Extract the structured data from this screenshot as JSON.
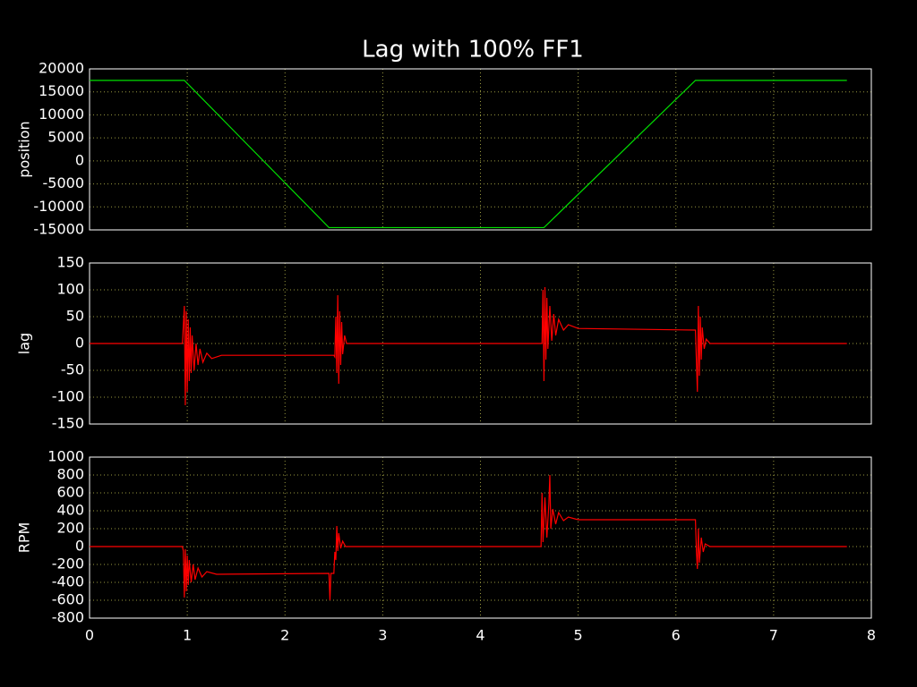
{
  "chart_data": [
    {
      "type": "line",
      "title": "Lag with 100% FF1",
      "ylabel": "position",
      "x": [
        0,
        0.97,
        2.45,
        4.65,
        6.2,
        7.75
      ],
      "series": [
        {
          "color": "#00e000",
          "values": [
            17500,
            17500,
            -14500,
            -14500,
            17500,
            17500
          ]
        }
      ],
      "xlim": [
        0,
        8
      ],
      "xticks": [
        0,
        1,
        2,
        3,
        4,
        5,
        6,
        7,
        8
      ],
      "ylim": [
        -15000,
        20000
      ],
      "yticks": [
        -15000,
        -10000,
        -5000,
        0,
        5000,
        10000,
        15000,
        20000
      ],
      "grid": true
    },
    {
      "type": "line",
      "ylabel": "lag",
      "x": [
        0,
        0.95,
        0.97,
        0.98,
        0.99,
        1.0,
        1.01,
        1.02,
        1.03,
        1.04,
        1.05,
        1.07,
        1.09,
        1.11,
        1.13,
        1.16,
        1.2,
        1.25,
        1.35,
        2.5,
        2.51,
        2.52,
        2.53,
        2.54,
        2.55,
        2.56,
        2.57,
        2.58,
        2.59,
        2.61,
        2.63,
        4.63,
        4.64,
        4.65,
        4.66,
        4.67,
        4.68,
        4.69,
        4.71,
        4.73,
        4.75,
        4.77,
        4.8,
        4.85,
        4.9,
        5.0,
        6.2,
        6.22,
        6.23,
        6.24,
        6.25,
        6.26,
        6.27,
        6.29,
        6.31,
        6.35,
        7.75
      ],
      "series": [
        {
          "color": "#ff0000",
          "values": [
            0,
            0,
            70,
            -115,
            60,
            -90,
            45,
            -70,
            30,
            -55,
            15,
            -50,
            0,
            -40,
            -10,
            -35,
            -18,
            -28,
            -22,
            -22,
            -25,
            50,
            -55,
            90,
            -75,
            60,
            -40,
            40,
            -20,
            15,
            0,
            0,
            100,
            -70,
            105,
            -30,
            85,
            -10,
            70,
            5,
            55,
            15,
            45,
            25,
            35,
            28,
            25,
            -90,
            70,
            -60,
            50,
            -30,
            30,
            -10,
            8,
            0,
            0
          ]
        }
      ],
      "xlim": [
        0,
        8
      ],
      "xticks": [
        0,
        1,
        2,
        3,
        4,
        5,
        6,
        7,
        8
      ],
      "ylim": [
        -150,
        150
      ],
      "yticks": [
        -150,
        -100,
        -50,
        0,
        50,
        100,
        150
      ],
      "grid": true
    },
    {
      "type": "line",
      "ylabel": "RPM",
      "x": [
        0,
        0.95,
        0.96,
        0.97,
        0.98,
        0.99,
        1.0,
        1.01,
        1.02,
        1.04,
        1.06,
        1.08,
        1.11,
        1.15,
        1.2,
        1.3,
        2.45,
        2.46,
        2.47,
        2.5,
        2.51,
        2.52,
        2.53,
        2.54,
        2.55,
        2.57,
        2.59,
        2.62,
        4.62,
        4.63,
        4.64,
        4.66,
        4.68,
        4.7,
        4.71,
        4.72,
        4.74,
        4.77,
        4.8,
        4.85,
        4.9,
        5.0,
        6.2,
        6.21,
        6.22,
        6.23,
        6.24,
        6.26,
        6.28,
        6.3,
        6.35,
        7.75
      ],
      "series": [
        {
          "color": "#ff0000",
          "values": [
            0,
            0,
            -50,
            -570,
            -30,
            -500,
            -100,
            -430,
            -150,
            -400,
            -200,
            -370,
            -240,
            -340,
            -280,
            -310,
            -300,
            -600,
            -300,
            -300,
            -60,
            -150,
            230,
            -50,
            150,
            -20,
            60,
            0,
            0,
            600,
            50,
            550,
            100,
            480,
            800,
            200,
            420,
            250,
            380,
            290,
            330,
            300,
            300,
            -50,
            -250,
            200,
            -180,
            100,
            -60,
            30,
            0,
            0
          ]
        }
      ],
      "xlim": [
        0,
        8
      ],
      "xticks": [
        0,
        1,
        2,
        3,
        4,
        5,
        6,
        7,
        8
      ],
      "ylim": [
        -800,
        1000
      ],
      "yticks": [
        -800,
        -600,
        -400,
        -200,
        0,
        200,
        400,
        600,
        800,
        1000
      ],
      "grid": true
    }
  ]
}
